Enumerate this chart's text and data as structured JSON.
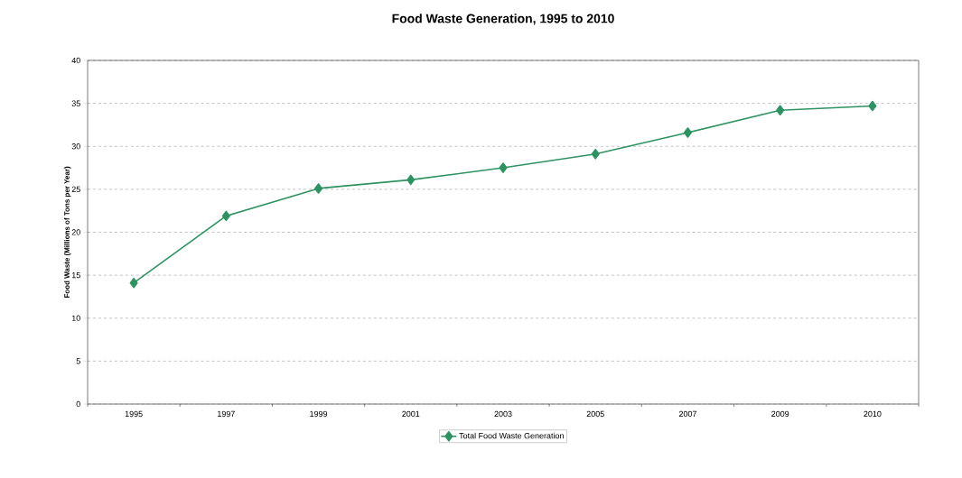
{
  "chart_data": {
    "type": "line",
    "title": "Food Waste Generation, 1995 to 2010",
    "ylabel": "Food Waste (Millions of Tons per Year)",
    "categories": [
      "1995",
      "1997",
      "1999",
      "2001",
      "2003",
      "2005",
      "2007",
      "2009",
      "2010"
    ],
    "series": [
      {
        "name": "Total Food Waste Generation",
        "color": "#2e9361",
        "values": [
          14.1,
          21.9,
          25.1,
          26.1,
          27.5,
          29.1,
          31.6,
          34.2,
          34.7
        ]
      }
    ],
    "ylim": [
      0,
      40
    ],
    "yticks": [
      0,
      5,
      10,
      15,
      20,
      25,
      30,
      35,
      40
    ],
    "grid": "y",
    "legend": "bottom",
    "marker": "diamond",
    "line_style": "solid"
  }
}
